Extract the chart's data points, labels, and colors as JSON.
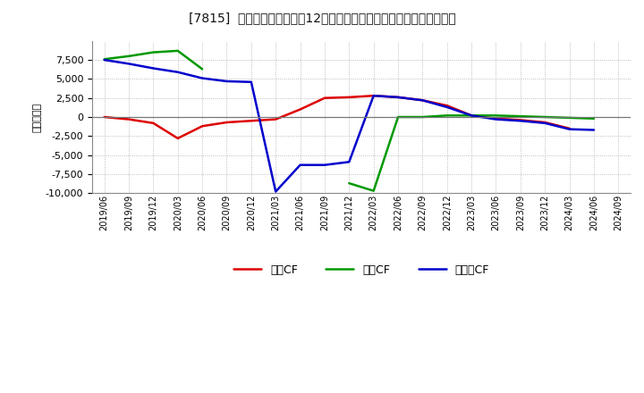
{
  "title": "[7815]  キャッシュフローの12か月移動合計の対前年同期増減額の推移",
  "ylabel": "（百万円）",
  "background_color": "#ffffff",
  "plot_bg_color": "#ffffff",
  "grid_color": "#aaaaaa",
  "ylim": [
    -10000,
    10000
  ],
  "yticks": [
    -10000,
    -7500,
    -5000,
    -2500,
    0,
    2500,
    5000,
    7500
  ],
  "x_labels": [
    "2019/06",
    "2019/09",
    "2019/12",
    "2020/03",
    "2020/06",
    "2020/09",
    "2020/12",
    "2021/03",
    "2021/06",
    "2021/09",
    "2021/12",
    "2022/03",
    "2022/06",
    "2022/09",
    "2022/12",
    "2023/03",
    "2023/06",
    "2023/09",
    "2023/12",
    "2024/03",
    "2024/06",
    "2024/09"
  ],
  "operating_cf": [
    0,
    -300,
    -800,
    -2800,
    -1200,
    -700,
    -500,
    -300,
    1000,
    2500,
    2600,
    2800,
    2600,
    2200,
    1500,
    200,
    -200,
    -400,
    -700,
    -1500,
    null,
    null
  ],
  "investing_cf": [
    7600,
    8000,
    8500,
    8700,
    6300,
    null,
    null,
    null,
    null,
    null,
    -8700,
    -9700,
    0,
    0,
    200,
    200,
    200,
    100,
    0,
    -100,
    -200,
    null
  ],
  "free_cf": [
    7500,
    7000,
    6400,
    5900,
    5100,
    4700,
    4600,
    -9800,
    -6300,
    -6300,
    -5900,
    2800,
    2600,
    2200,
    1300,
    200,
    -300,
    -500,
    -800,
    -1600,
    -1700,
    null
  ],
  "operating_color": "#dd0000",
  "investing_color": "#009900",
  "free_color": "#0000cc",
  "line_width": 1.8,
  "legend_labels": [
    "営業CF",
    "投資CF",
    "フリーCF"
  ]
}
